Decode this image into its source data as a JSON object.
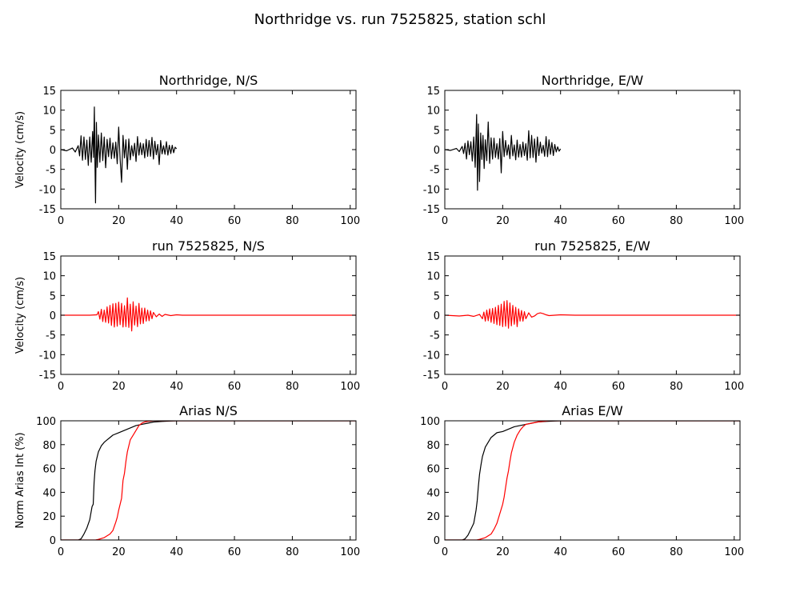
{
  "figure": {
    "suptitle": "Northridge vs. run 7525825, station schl"
  },
  "colors": {
    "recorded": "#000000",
    "simulated": "#ff0000",
    "axes": "#000000",
    "background": "#ffffff"
  },
  "chart_data": [
    {
      "id": "p1",
      "type": "line",
      "title": "Northridge, N/S",
      "ylabel": "Velocity (cm/s)",
      "xlabel": "",
      "xlim": [
        0,
        102
      ],
      "ylim": [
        -15,
        15
      ],
      "xticks": [
        0,
        20,
        40,
        60,
        80,
        100
      ],
      "yticks": [
        -15,
        -10,
        -5,
        0,
        5,
        10,
        15
      ],
      "grid": false,
      "series": [
        {
          "color": "#000000",
          "x": [
            0,
            2,
            4,
            5,
            6,
            6.5,
            7,
            7.5,
            8,
            8.5,
            9,
            9.5,
            10,
            10.5,
            11,
            11.3,
            11.6,
            11.8,
            12,
            12.3,
            12.6,
            13,
            13.5,
            14,
            14.5,
            15,
            15.5,
            16,
            16.5,
            17,
            17.5,
            18,
            18.5,
            19,
            19.5,
            20,
            20.5,
            21,
            21.5,
            22,
            22.5,
            23,
            23.5,
            24,
            24.5,
            25,
            25.5,
            26,
            26.5,
            27,
            27.5,
            28,
            28.5,
            29,
            29.5,
            30,
            30.5,
            31,
            31.5,
            32,
            32.5,
            33,
            33.5,
            34,
            34.5,
            35,
            35.5,
            36,
            36.5,
            37,
            37.5,
            38,
            38.5,
            39,
            39.5,
            40
          ],
          "y": [
            0,
            -0.3,
            0.4,
            -0.6,
            1,
            -1.6,
            3.5,
            -2.7,
            3.2,
            -2.5,
            2.4,
            -4,
            3.2,
            -3.2,
            4.6,
            -2,
            10.8,
            -3,
            -13.5,
            6.9,
            -4.5,
            3.7,
            -3.2,
            4.2,
            -2.8,
            3.2,
            -4.6,
            2.6,
            -1.8,
            2.9,
            -2.3,
            1.7,
            -2.2,
            1.9,
            -3.6,
            5.7,
            -2.4,
            -8.3,
            3.6,
            -2.1,
            2.5,
            -5,
            2.7,
            -2.6,
            1,
            -1.6,
            1.6,
            -3,
            3.3,
            -1.4,
            1.7,
            -1.3,
            1.5,
            -2.1,
            2.6,
            -1.7,
            2.3,
            -1.7,
            3.1,
            -2.4,
            2.1,
            -1.3,
            1.3,
            -3.8,
            2.3,
            -1.1,
            1,
            -1.2,
            2,
            -1.4,
            1.1,
            -1,
            1.1,
            -0.8,
            0.6,
            0.2
          ]
        }
      ]
    },
    {
      "id": "p2",
      "type": "line",
      "title": "Northridge, E/W",
      "ylabel": "",
      "xlabel": "",
      "xlim": [
        0,
        102
      ],
      "ylim": [
        -15,
        15
      ],
      "xticks": [
        0,
        20,
        40,
        60,
        80,
        100
      ],
      "yticks": [
        -15,
        -10,
        -5,
        0,
        5,
        10,
        15
      ],
      "grid": false,
      "series": [
        {
          "color": "#000000",
          "x": [
            0,
            2,
            4,
            5,
            6,
            6.5,
            7,
            7.5,
            8,
            8.5,
            9,
            9.5,
            10,
            10.5,
            11,
            11.3,
            11.6,
            12,
            12.4,
            12.8,
            13.2,
            13.6,
            14,
            14.5,
            15,
            15.5,
            16,
            16.5,
            17,
            17.5,
            18,
            18.5,
            19,
            19.5,
            20,
            20.5,
            21,
            21.5,
            22,
            22.5,
            23,
            23.5,
            24,
            24.5,
            25,
            25.5,
            26,
            26.5,
            27,
            27.5,
            28,
            28.5,
            29,
            29.5,
            30,
            30.5,
            31,
            31.5,
            32,
            32.5,
            33,
            33.5,
            34,
            34.5,
            35,
            35.5,
            36,
            36.5,
            37,
            37.5,
            38,
            38.5,
            39,
            39.5,
            40
          ],
          "y": [
            0,
            -0.2,
            0.3,
            -0.5,
            0.8,
            -1,
            1.6,
            -2.4,
            2.2,
            -1.3,
            2,
            -2.9,
            3.2,
            -4.5,
            8.9,
            -10.3,
            6.5,
            -8.1,
            4.2,
            -2.5,
            3.6,
            -4.8,
            2.5,
            -2.8,
            7,
            -3.5,
            3,
            -2.4,
            2.9,
            -2,
            1.5,
            -2.4,
            2.8,
            -5.9,
            4.6,
            -1.8,
            2.3,
            -1.4,
            1.2,
            -2.3,
            3.6,
            -1.6,
            1.2,
            -2.6,
            2.4,
            -1.9,
            1.3,
            -1.9,
            1.9,
            -1.5,
            1.5,
            -2.7,
            4.8,
            -2.1,
            3.6,
            -2,
            2.7,
            -3.2,
            3.2,
            -1.5,
            1.9,
            -0.9,
            1.1,
            -1.7,
            3.3,
            -1.8,
            2.5,
            -1.2,
            1.8,
            -1.5,
            1.3,
            -0.6,
            0.7,
            -0.4,
            0.2
          ]
        }
      ]
    },
    {
      "id": "p3",
      "type": "line",
      "title": "run 7525825, N/S",
      "ylabel": "Velocity (cm/s)",
      "xlabel": "",
      "xlim": [
        0,
        102
      ],
      "ylim": [
        -15,
        15
      ],
      "xticks": [
        0,
        20,
        40,
        60,
        80,
        100
      ],
      "yticks": [
        -15,
        -10,
        -5,
        0,
        5,
        10,
        15
      ],
      "grid": false,
      "series": [
        {
          "color": "#ff0000",
          "x": [
            0,
            5,
            10,
            12.5,
            13,
            13.5,
            14,
            14.5,
            15,
            15.5,
            16,
            16.5,
            17,
            17.5,
            18,
            18.5,
            19,
            19.5,
            20,
            20.5,
            21,
            21.5,
            22,
            22.5,
            23,
            23.5,
            24,
            24.5,
            25,
            25.5,
            26,
            26.5,
            27,
            27.5,
            28,
            28.5,
            29,
            29.5,
            30,
            30.5,
            31,
            31.5,
            32,
            33,
            34,
            35,
            36,
            38,
            40,
            42,
            44,
            50,
            60,
            70,
            80,
            90,
            100,
            102
          ],
          "y": [
            0,
            0,
            0,
            0.1,
            0.9,
            -1,
            1.5,
            -1.6,
            1.3,
            -1.8,
            2.1,
            -2,
            2.5,
            -2.6,
            2.9,
            -3,
            3,
            -2.8,
            3.3,
            -2.4,
            3,
            -3,
            2.4,
            -2.9,
            4.4,
            -3.1,
            2.8,
            -4,
            3.4,
            -2.5,
            2.3,
            -2.9,
            3,
            -2.2,
            1.8,
            -2.1,
            1.8,
            -1.5,
            1.3,
            -1.4,
            1.1,
            -0.9,
            0.7,
            -0.4,
            0.3,
            -0.3,
            0.2,
            -0.1,
            0.1,
            0,
            0,
            0,
            0,
            0,
            0,
            0,
            0,
            0
          ]
        }
      ]
    },
    {
      "id": "p4",
      "type": "line",
      "title": "run 7525825, E/W",
      "ylabel": "",
      "xlabel": "",
      "xlim": [
        0,
        102
      ],
      "ylim": [
        -15,
        15
      ],
      "xticks": [
        0,
        20,
        40,
        60,
        80,
        100
      ],
      "yticks": [
        -15,
        -10,
        -5,
        0,
        5,
        10,
        15
      ],
      "grid": false,
      "series": [
        {
          "color": "#ff0000",
          "x": [
            0,
            5,
            8,
            10,
            12,
            13,
            13.5,
            14,
            14.5,
            15,
            15.5,
            16,
            16.5,
            17,
            17.5,
            18,
            18.5,
            19,
            19.5,
            20,
            20.5,
            21,
            21.5,
            22,
            22.5,
            23,
            23.5,
            24,
            24.5,
            25,
            25.5,
            26,
            26.5,
            27,
            27.5,
            28,
            29,
            30,
            31,
            32,
            33,
            34,
            35,
            36,
            38,
            40,
            45,
            50,
            60,
            70,
            80,
            90,
            100,
            102
          ],
          "y": [
            0,
            -0.2,
            0,
            -0.3,
            0.2,
            -0.9,
            0.8,
            -1.5,
            1.3,
            -1.4,
            1.6,
            -1.8,
            1.7,
            -2.1,
            2,
            -2.4,
            2.5,
            -2.6,
            2.8,
            -2.9,
            3.5,
            -2.8,
            3.7,
            -3.3,
            3.1,
            -2.7,
            2.5,
            -2.3,
            2,
            -2.9,
            1.6,
            -1.5,
            1.2,
            -1.5,
            0.9,
            -0.9,
            0.6,
            -0.5,
            -0.2,
            0.4,
            0.6,
            0.4,
            0.1,
            -0.1,
            0,
            0.1,
            0,
            0,
            0,
            0,
            0,
            0,
            0,
            0
          ]
        }
      ]
    },
    {
      "id": "p5",
      "type": "line",
      "title": "Arias N/S",
      "ylabel": "Norm Arias Int (%)",
      "xlabel": "",
      "xlim": [
        0,
        102
      ],
      "ylim": [
        0,
        100
      ],
      "xticks": [
        0,
        20,
        40,
        60,
        80,
        100
      ],
      "yticks": [
        0,
        20,
        40,
        60,
        80,
        100
      ],
      "grid": false,
      "series": [
        {
          "color": "#000000",
          "x": [
            0,
            6,
            7,
            8,
            9,
            10,
            10.8,
            11.2,
            11.5,
            11.8,
            12.2,
            12.6,
            13,
            14,
            15,
            16,
            17,
            18,
            20,
            22,
            24,
            26,
            28,
            30,
            32,
            35,
            38,
            40,
            50,
            60,
            80,
            100,
            102
          ],
          "y": [
            0,
            0,
            1,
            5,
            10,
            17,
            28,
            30,
            48,
            58,
            66,
            70,
            74,
            79,
            82,
            84,
            86,
            88,
            90,
            92,
            94,
            96,
            97,
            98,
            99,
            99.5,
            99.8,
            100,
            100,
            100,
            100,
            100,
            100
          ]
        },
        {
          "color": "#ff0000",
          "x": [
            0,
            12,
            13,
            15,
            17,
            18,
            19,
            19.5,
            20,
            21,
            21.5,
            22,
            22.5,
            23,
            24,
            25,
            26,
            27,
            28,
            29,
            30,
            32,
            34,
            36,
            40,
            50,
            60,
            80,
            100,
            102
          ],
          "y": [
            0,
            0,
            0.5,
            2,
            5,
            8,
            15,
            19,
            25,
            35,
            50,
            56,
            66,
            74,
            84,
            88,
            92,
            96,
            98,
            99,
            99.5,
            100,
            100,
            100,
            100,
            100,
            100,
            100,
            100,
            100
          ]
        }
      ]
    },
    {
      "id": "p6",
      "type": "line",
      "title": "Arias E/W",
      "ylabel": "",
      "xlabel": "",
      "xlim": [
        0,
        102
      ],
      "ylim": [
        0,
        100
      ],
      "xticks": [
        0,
        20,
        40,
        60,
        80,
        100
      ],
      "yticks": [
        0,
        20,
        40,
        60,
        80,
        100
      ],
      "grid": false,
      "series": [
        {
          "color": "#000000",
          "x": [
            0,
            6,
            7,
            8,
            9,
            10,
            10.8,
            11.2,
            11.6,
            12,
            12.5,
            13,
            14,
            15,
            16,
            17,
            18,
            20,
            22,
            24,
            26,
            28,
            30,
            32,
            35,
            38,
            40,
            50,
            60,
            80,
            100,
            102
          ],
          "y": [
            0,
            0,
            1,
            4,
            9,
            14,
            25,
            33,
            45,
            55,
            63,
            70,
            78,
            82,
            86,
            88,
            90,
            91,
            93,
            95,
            96,
            97,
            98,
            99,
            99.5,
            99.8,
            100,
            100,
            100,
            100,
            100,
            100
          ]
        },
        {
          "color": "#ff0000",
          "x": [
            0,
            11,
            12,
            14,
            16,
            17,
            18,
            19,
            20,
            20.5,
            21,
            21.5,
            22,
            22.5,
            23,
            24,
            25,
            26,
            27,
            28,
            30,
            32,
            34,
            36,
            40,
            50,
            60,
            80,
            100,
            102
          ],
          "y": [
            0,
            0,
            0.5,
            2,
            5,
            9,
            14,
            22,
            30,
            36,
            44,
            52,
            58,
            66,
            73,
            82,
            88,
            92,
            95,
            97,
            98,
            99,
            99.5,
            100,
            100,
            100,
            100,
            100,
            100,
            100
          ]
        }
      ]
    }
  ]
}
